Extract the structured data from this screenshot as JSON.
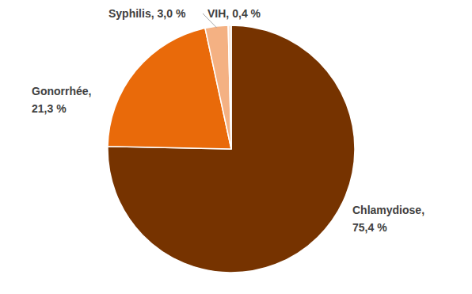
{
  "chart_data": {
    "type": "pie",
    "categories": [
      "Chlamydiose,",
      "Gonorrhée,",
      "Syphilis,",
      "VIH,"
    ],
    "values": [
      75.4,
      21.3,
      3.0,
      0.4
    ],
    "value_labels": [
      "75,4 %",
      "21,3 %",
      "3,0 %",
      "0,4 %"
    ],
    "colors": [
      "#763300",
      "#e96a0a",
      "#f4b183",
      "#fbe5d6"
    ],
    "data_labels": true
  }
}
